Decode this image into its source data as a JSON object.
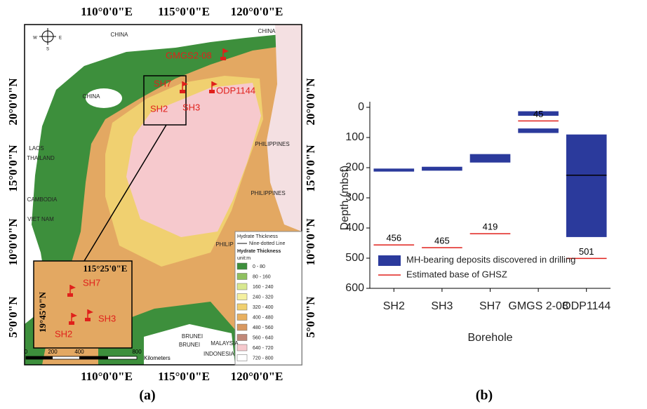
{
  "figure": {
    "panel_a": "(a)",
    "panel_b": "(b)"
  },
  "map": {
    "top_labels": [
      "110°0'0\"E",
      "115°0'0\"E",
      "120°0'0\"E"
    ],
    "bottom_labels": [
      "110°0'0\"E",
      "115°0'0\"E",
      "120°0'0\"E"
    ],
    "left_labels": [
      "20°0'0\"N",
      "15°0'0\"N",
      "10°0'0\"N",
      "5°0'0\"N"
    ],
    "right_labels": [
      "20°0'0\"N",
      "15°0'0\"N",
      "10°0'0\"N",
      "5°0'0\"N"
    ],
    "places": [
      "CHINA",
      "CHINA",
      "CHINA",
      "LAOS",
      "THAILAND",
      "CAMBODIA",
      "VIET NAM",
      "PHILIPPINES",
      "PHILIPPINES",
      "PHILIP",
      "BRUNEI",
      "BRUNEI",
      "MALAYSIA",
      "INDONESIA"
    ],
    "sites": [
      "GMGS2-08",
      "SH7",
      "ODP1144",
      "SH2",
      "SH3"
    ],
    "inset": {
      "lon": "115°25'0\"E",
      "lat": "19°45'0\"N",
      "sites": [
        "SH7",
        "SH3",
        "SH2"
      ]
    },
    "compass": [
      "W",
      "E",
      "S"
    ],
    "legend": {
      "title": "Hydrate Thickness",
      "line": "Nine-dotted Line",
      "subtitle": "Hydrate Thickness",
      "unit": "unit:m",
      "classes": [
        {
          "label": "0 - 80",
          "color": "#3d8f3c"
        },
        {
          "label": "80 - 160",
          "color": "#8fc060"
        },
        {
          "label": "160 - 240",
          "color": "#d8e890"
        },
        {
          "label": "240 - 320",
          "color": "#f4f0a0"
        },
        {
          "label": "320 - 400",
          "color": "#f0d070"
        },
        {
          "label": "400 - 480",
          "color": "#e8b060"
        },
        {
          "label": "480 - 560",
          "color": "#d89860"
        },
        {
          "label": "560 - 640",
          "color": "#c08878"
        },
        {
          "label": "640 - 720",
          "color": "#f6c9cd"
        },
        {
          "label": "720 - 800",
          "color": "#ffffff"
        }
      ]
    },
    "scale": {
      "ticks": [
        0,
        200,
        400,
        800
      ],
      "unit": "Kilometers"
    }
  },
  "chart_data": {
    "type": "range_bar",
    "xlabel": "Borehole",
    "ylabel": "Depth (mbsf)",
    "categories": [
      "SH2",
      "SH3",
      "SH7",
      "GMGS 2-08",
      "ODP1144"
    ],
    "ylim": [
      0,
      600
    ],
    "yticks": [
      0,
      100,
      200,
      300,
      400,
      500,
      600
    ],
    "y_inverted": true,
    "legend": "lower left",
    "series": [
      {
        "name": "MH-bearing deposits discovered in drilling",
        "color": "#2b3a9c",
        "type": "range",
        "ranges": [
          [
            [
              203,
              213
            ]
          ],
          [
            [
              197,
              210
            ]
          ],
          [
            [
              155,
              183
            ]
          ],
          [
            [
              13,
              28
            ],
            [
              70,
              85
            ]
          ],
          [
            [
              90,
              430
            ]
          ]
        ]
      },
      {
        "name": "Estimated base of GHSZ",
        "color": "#e0201b",
        "type": "level",
        "values": [
          456,
          465,
          419,
          45,
          501
        ]
      }
    ],
    "markers": {
      "color": "#000000",
      "values": [
        null,
        null,
        null,
        null,
        225
      ]
    }
  }
}
